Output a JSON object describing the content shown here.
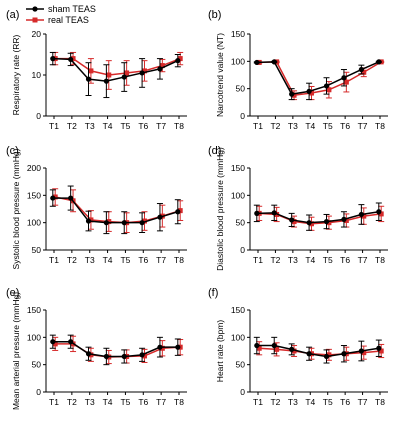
{
  "legend": [
    {
      "label": "sham TEAS",
      "color": "#000000",
      "marker": "circle"
    },
    {
      "label": "real TEAS",
      "color": "#d62a2a",
      "marker": "square"
    }
  ],
  "chart_data": [
    {
      "panel": "(a)",
      "type": "line",
      "ylabel": "Respiratory rate (RR)",
      "categories": [
        "T1",
        "T2",
        "T3",
        "T4",
        "T5",
        "T6",
        "T7",
        "T8"
      ],
      "ylim": [
        0,
        20
      ],
      "yticks": [
        0,
        10,
        20
      ],
      "series": [
        {
          "name": "sham TEAS",
          "values": [
            14,
            13.8,
            9,
            8.5,
            9.5,
            10.5,
            11.5,
            13.5
          ],
          "err": [
            1.5,
            1.5,
            4,
            4,
            3.5,
            3.5,
            2.5,
            1.5
          ]
        },
        {
          "name": "real TEAS",
          "values": [
            14,
            14,
            11,
            10,
            10.5,
            11,
            12.3,
            14
          ],
          "err": [
            1.5,
            1.5,
            3,
            3.5,
            3,
            2.5,
            1.5,
            1.5
          ]
        }
      ]
    },
    {
      "panel": "(b)",
      "type": "line",
      "ylabel": "Narcotrend value (NT)",
      "categories": [
        "T1",
        "T2",
        "T3",
        "T4",
        "T5",
        "T6",
        "T7",
        "T8"
      ],
      "ylim": [
        0,
        150
      ],
      "yticks": [
        0,
        50,
        100,
        150
      ],
      "series": [
        {
          "name": "sham TEAS",
          "values": [
            98,
            99,
            40,
            45,
            55,
            70,
            85,
            99
          ],
          "err": [
            1,
            1,
            10,
            15,
            15,
            15,
            8,
            1
          ]
        },
        {
          "name": "real TEAS",
          "values": [
            98,
            99,
            38,
            42,
            48,
            62,
            80,
            99
          ],
          "err": [
            1,
            1,
            8,
            12,
            15,
            18,
            8,
            1
          ]
        }
      ]
    },
    {
      "panel": "(c)",
      "type": "line",
      "ylabel": "Systolic blood pressure (mmHg)",
      "categories": [
        "T1",
        "T2",
        "T3",
        "T4",
        "T5",
        "T6",
        "T7",
        "T8"
      ],
      "ylim": [
        50,
        200
      ],
      "yticks": [
        50,
        100,
        150,
        200
      ],
      "series": [
        {
          "name": "sham TEAS",
          "values": [
            145,
            145,
            103,
            100,
            100,
            100,
            110,
            120
          ],
          "err": [
            15,
            22,
            18,
            20,
            20,
            18,
            25,
            22
          ]
        },
        {
          "name": "real TEAS",
          "values": [
            147,
            140,
            105,
            102,
            100,
            103,
            112,
            122
          ],
          "err": [
            15,
            20,
            17,
            18,
            18,
            17,
            20,
            18
          ]
        }
      ]
    },
    {
      "panel": "(d)",
      "type": "line",
      "ylabel": "Diastolic blood pressure (mmHg)",
      "categories": [
        "T1",
        "T2",
        "T3",
        "T4",
        "T5",
        "T6",
        "T7",
        "T8"
      ],
      "ylim": [
        0,
        150
      ],
      "yticks": [
        0,
        50,
        100,
        150
      ],
      "series": [
        {
          "name": "sham TEAS",
          "values": [
            67,
            68,
            55,
            50,
            52,
            56,
            65,
            70
          ],
          "err": [
            15,
            14,
            12,
            14,
            13,
            14,
            18,
            16
          ]
        },
        {
          "name": "real TEAS",
          "values": [
            67,
            65,
            52,
            48,
            50,
            54,
            62,
            66
          ],
          "err": [
            13,
            13,
            10,
            12,
            12,
            12,
            15,
            14
          ]
        }
      ]
    },
    {
      "panel": "(e)",
      "type": "line",
      "ylabel": "Mean arterial pressure (mmHg)",
      "categories": [
        "T1",
        "T2",
        "T3",
        "T4",
        "T5",
        "T6",
        "T7",
        "T8"
      ],
      "ylim": [
        0,
        150
      ],
      "yticks": [
        0,
        50,
        100,
        150
      ],
      "series": [
        {
          "name": "sham TEAS",
          "values": [
            92,
            92,
            70,
            65,
            65,
            68,
            82,
            82
          ],
          "err": [
            12,
            12,
            12,
            15,
            12,
            12,
            18,
            15
          ]
        },
        {
          "name": "real TEAS",
          "values": [
            88,
            88,
            68,
            64,
            65,
            66,
            80,
            82
          ],
          "err": [
            12,
            14,
            12,
            12,
            12,
            12,
            14,
            14
          ]
        }
      ]
    },
    {
      "panel": "(f)",
      "type": "line",
      "ylabel": "Heart rate (bpm)",
      "categories": [
        "T1",
        "T2",
        "T3",
        "T4",
        "T5",
        "T6",
        "T7",
        "T8"
      ],
      "ylim": [
        0,
        150
      ],
      "yticks": [
        0,
        50,
        100,
        150
      ],
      "series": [
        {
          "name": "sham TEAS",
          "values": [
            85,
            85,
            78,
            70,
            65,
            70,
            75,
            80
          ],
          "err": [
            15,
            15,
            10,
            12,
            12,
            15,
            18,
            15
          ]
        },
        {
          "name": "real TEAS",
          "values": [
            80,
            78,
            75,
            70,
            68,
            70,
            72,
            75
          ],
          "err": [
            12,
            12,
            10,
            10,
            10,
            12,
            12,
            12
          ]
        }
      ]
    }
  ]
}
